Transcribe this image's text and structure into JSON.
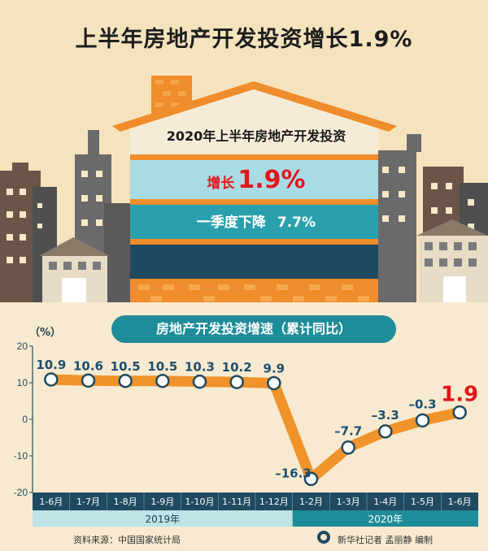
{
  "headline": "上半年房地产开发投资增长1.9%",
  "house": {
    "title": "2020年上半年房地产开发投资",
    "growth_label": "增长",
    "growth_value": "1.9%",
    "q1_label": "一季度下降",
    "q1_value": "7.7%"
  },
  "chart_subtitle": "房地产开发投资增速（累计同比）",
  "colors": {
    "line": "#f0932b",
    "teal": "#1f8c99",
    "navy": "#1f4a60",
    "red": "#e3151b",
    "label": "#1e4e6e"
  },
  "footer": {
    "source": "资料来源：中国国家统计局",
    "credit": "新华社记者 孟丽静 编制"
  },
  "chart_data": {
    "type": "line",
    "unit_label": "（%）",
    "categories": [
      "1-6月",
      "1-7月",
      "1-8月",
      "1-9月",
      "1-10月",
      "1-11月",
      "1-12月",
      "1-2月",
      "1-3月",
      "1-4月",
      "1-5月",
      "1-6月"
    ],
    "values": [
      10.9,
      10.6,
      10.5,
      10.5,
      10.3,
      10.2,
      9.9,
      -16.3,
      -7.7,
      -3.3,
      -0.3,
      1.9
    ],
    "value_labels": [
      "10.9",
      "10.6",
      "10.5",
      "10.5",
      "10.3",
      "10.2",
      "9.9",
      "–16.3",
      "–7.7",
      "–3.3",
      "–0.3",
      "1.9"
    ],
    "highlight_last": true,
    "ylim": [
      -20,
      20
    ],
    "yticks": [
      20,
      10,
      0,
      -10,
      -20
    ],
    "ytick_labels": [
      "20",
      "10",
      "0",
      "-10",
      "-20"
    ],
    "groups": [
      {
        "label": "2019年",
        "count": 7
      },
      {
        "label": "2020年",
        "count": 5
      }
    ],
    "grid": false,
    "legend": "none"
  }
}
